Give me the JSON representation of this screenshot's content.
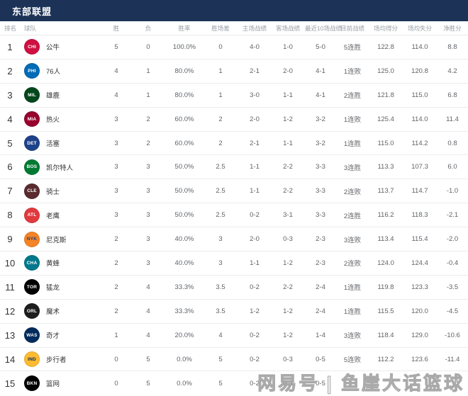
{
  "header": {
    "title": "东部联盟"
  },
  "colors": {
    "header_bg": "#1c3357",
    "row_border": "#ededed",
    "header_text": "#9aa0a6",
    "cell_text": "#5f6368"
  },
  "table": {
    "columns": [
      "排名",
      "球队",
      "胜",
      "负",
      "胜率",
      "胜场差",
      "主场战绩",
      "客场战绩",
      "最近10场战绩",
      "目前战绩",
      "场均得分",
      "场均失分",
      "净胜分"
    ],
    "rows": [
      {
        "rank": "1",
        "team": "公牛",
        "logo": "bulls-logo",
        "abbr": "CHI",
        "logo_bg": "#ce1141",
        "logo_fg": "#ffffff",
        "wins": "5",
        "losses": "0",
        "win_pct": "100.0%",
        "gb": "0",
        "home": "4-0",
        "away": "1-0",
        "last10": "5-0",
        "streak": "5连胜",
        "ppg": "122.8",
        "opp_ppg": "114.0",
        "diff": "8.8"
      },
      {
        "rank": "2",
        "team": "76人",
        "logo": "sixers-logo",
        "abbr": "PHI",
        "logo_bg": "#006bb6",
        "logo_fg": "#ffffff",
        "wins": "4",
        "losses": "1",
        "win_pct": "80.0%",
        "gb": "1",
        "home": "2-1",
        "away": "2-0",
        "last10": "4-1",
        "streak": "1连败",
        "ppg": "125.0",
        "opp_ppg": "120.8",
        "diff": "4.2"
      },
      {
        "rank": "3",
        "team": "雄鹿",
        "logo": "bucks-logo",
        "abbr": "MIL",
        "logo_bg": "#00471b",
        "logo_fg": "#ffffff",
        "wins": "4",
        "losses": "1",
        "win_pct": "80.0%",
        "gb": "1",
        "home": "3-0",
        "away": "1-1",
        "last10": "4-1",
        "streak": "2连胜",
        "ppg": "121.8",
        "opp_ppg": "115.0",
        "diff": "6.8"
      },
      {
        "rank": "4",
        "team": "热火",
        "logo": "heat-logo",
        "abbr": "MIA",
        "logo_bg": "#98002e",
        "logo_fg": "#ffffff",
        "wins": "3",
        "losses": "2",
        "win_pct": "60.0%",
        "gb": "2",
        "home": "2-0",
        "away": "1-2",
        "last10": "3-2",
        "streak": "1连败",
        "ppg": "125.4",
        "opp_ppg": "114.0",
        "diff": "11.4"
      },
      {
        "rank": "5",
        "team": "活塞",
        "logo": "pistons-logo",
        "abbr": "DET",
        "logo_bg": "#1d428a",
        "logo_fg": "#ffffff",
        "wins": "3",
        "losses": "2",
        "win_pct": "60.0%",
        "gb": "2",
        "home": "2-1",
        "away": "1-1",
        "last10": "3-2",
        "streak": "1连胜",
        "ppg": "115.0",
        "opp_ppg": "114.2",
        "diff": "0.8"
      },
      {
        "rank": "6",
        "team": "凯尔特人",
        "logo": "celtics-logo",
        "abbr": "BOS",
        "logo_bg": "#007a33",
        "logo_fg": "#ffffff",
        "wins": "3",
        "losses": "3",
        "win_pct": "50.0%",
        "gb": "2.5",
        "home": "1-1",
        "away": "2-2",
        "last10": "3-3",
        "streak": "3连胜",
        "ppg": "113.3",
        "opp_ppg": "107.3",
        "diff": "6.0"
      },
      {
        "rank": "7",
        "team": "骑士",
        "logo": "cavaliers-logo",
        "abbr": "CLE",
        "logo_bg": "#592a2e",
        "logo_fg": "#ffffff",
        "wins": "3",
        "losses": "3",
        "win_pct": "50.0%",
        "gb": "2.5",
        "home": "1-1",
        "away": "2-2",
        "last10": "3-3",
        "streak": "2连败",
        "ppg": "113.7",
        "opp_ppg": "114.7",
        "diff": "-1.0"
      },
      {
        "rank": "8",
        "team": "老鹰",
        "logo": "hawks-logo",
        "abbr": "ATL",
        "logo_bg": "#e03a3e",
        "logo_fg": "#ffffff",
        "wins": "3",
        "losses": "3",
        "win_pct": "50.0%",
        "gb": "2.5",
        "home": "0-2",
        "away": "3-1",
        "last10": "3-3",
        "streak": "2连胜",
        "ppg": "116.2",
        "opp_ppg": "118.3",
        "diff": "-2.1"
      },
      {
        "rank": "9",
        "team": "尼克斯",
        "logo": "knicks-logo",
        "abbr": "NYK",
        "logo_bg": "#f58426",
        "logo_fg": "#1d428a",
        "wins": "2",
        "losses": "3",
        "win_pct": "40.0%",
        "gb": "3",
        "home": "2-0",
        "away": "0-3",
        "last10": "2-3",
        "streak": "3连败",
        "ppg": "113.4",
        "opp_ppg": "115.4",
        "diff": "-2.0"
      },
      {
        "rank": "10",
        "team": "黄蜂",
        "logo": "hornets-logo",
        "abbr": "CHA",
        "logo_bg": "#00788c",
        "logo_fg": "#ffffff",
        "wins": "2",
        "losses": "3",
        "win_pct": "40.0%",
        "gb": "3",
        "home": "1-1",
        "away": "1-2",
        "last10": "2-3",
        "streak": "2连败",
        "ppg": "124.0",
        "opp_ppg": "124.4",
        "diff": "-0.4"
      },
      {
        "rank": "11",
        "team": "猛龙",
        "logo": "raptors-logo",
        "abbr": "TOR",
        "logo_bg": "#000000",
        "logo_fg": "#ffffff",
        "wins": "2",
        "losses": "4",
        "win_pct": "33.3%",
        "gb": "3.5",
        "home": "0-2",
        "away": "2-2",
        "last10": "2-4",
        "streak": "1连胜",
        "ppg": "119.8",
        "opp_ppg": "123.3",
        "diff": "-3.5"
      },
      {
        "rank": "12",
        "team": "魔术",
        "logo": "magic-logo",
        "abbr": "ORL",
        "logo_bg": "#1d1d1d",
        "logo_fg": "#ffffff",
        "wins": "2",
        "losses": "4",
        "win_pct": "33.3%",
        "gb": "3.5",
        "home": "1-2",
        "away": "1-2",
        "last10": "2-4",
        "streak": "1连胜",
        "ppg": "115.5",
        "opp_ppg": "120.0",
        "diff": "-4.5"
      },
      {
        "rank": "13",
        "team": "奇才",
        "logo": "wizards-logo",
        "abbr": "WAS",
        "logo_bg": "#002b5c",
        "logo_fg": "#ffffff",
        "wins": "1",
        "losses": "4",
        "win_pct": "20.0%",
        "gb": "4",
        "home": "0-2",
        "away": "1-2",
        "last10": "1-4",
        "streak": "3连败",
        "ppg": "118.4",
        "opp_ppg": "129.0",
        "diff": "-10.6"
      },
      {
        "rank": "14",
        "team": "步行者",
        "logo": "pacers-logo",
        "abbr": "IND",
        "logo_bg": "#fdbb30",
        "logo_fg": "#002d62",
        "wins": "0",
        "losses": "5",
        "win_pct": "0.0%",
        "gb": "5",
        "home": "0-2",
        "away": "0-3",
        "last10": "0-5",
        "streak": "5连败",
        "ppg": "112.2",
        "opp_ppg": "123.6",
        "diff": "-11.4"
      },
      {
        "rank": "15",
        "team": "篮网",
        "logo": "nets-logo",
        "abbr": "BKN",
        "logo_bg": "#000000",
        "logo_fg": "#ffffff",
        "wins": "0",
        "losses": "5",
        "win_pct": "0.0%",
        "gb": "5",
        "home": "0-2",
        "away": "0-3",
        "last10": "0-5",
        "streak": "",
        "ppg": "",
        "opp_ppg": "",
        "diff": ""
      }
    ]
  },
  "watermark": {
    "text": "网易号 | 鱼崖大话篮球"
  }
}
